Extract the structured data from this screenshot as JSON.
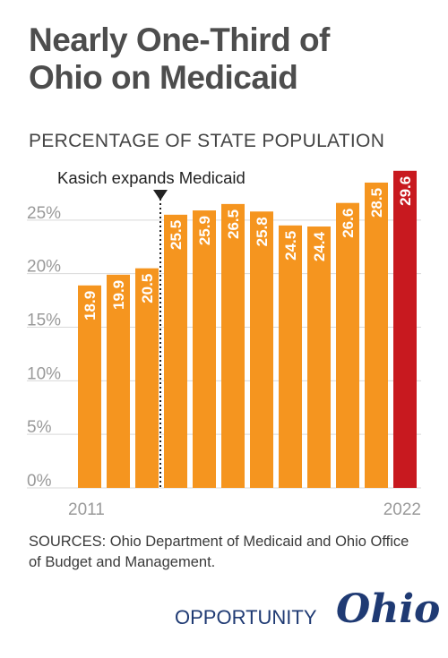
{
  "chart_data": {
    "type": "bar",
    "title": [
      "Nearly One-Third of",
      "Ohio on Medicaid"
    ],
    "subtitle": "PERCENTAGE OF STATE POPULATION",
    "values": [
      18.9,
      19.9,
      20.5,
      25.5,
      25.9,
      26.5,
      25.8,
      24.5,
      24.4,
      26.6,
      28.5,
      29.6
    ],
    "value_labels": [
      "18.9",
      "19.9",
      "20.5",
      "25.5",
      "25.9",
      "26.5",
      "25.8",
      "24.5",
      "24.4",
      "26.6",
      "28.5",
      "29.6"
    ],
    "x_tick_labels": {
      "first": "2011",
      "last": "2022"
    },
    "y_ticks": [
      0,
      5,
      10,
      15,
      20,
      25
    ],
    "y_tick_labels": [
      "0%",
      "5%",
      "10%",
      "15%",
      "20%",
      "25%"
    ],
    "ylim": [
      0,
      30
    ],
    "grid": true,
    "annotation": {
      "text": "Kasich expands Medicaid",
      "after_index": 2
    },
    "colors": {
      "bar": "#f5951f",
      "highlight": "#c8191f",
      "grid": "#d9d9d9",
      "axis_text": "#9a9a9a"
    },
    "highlight_index": 11
  },
  "sources": "SOURCES: Ohio Department of Medicaid and Ohio Office of Budget and Management.",
  "logo": {
    "opportunity": "OPPORTUNITY",
    "ohio": "Ohio"
  }
}
